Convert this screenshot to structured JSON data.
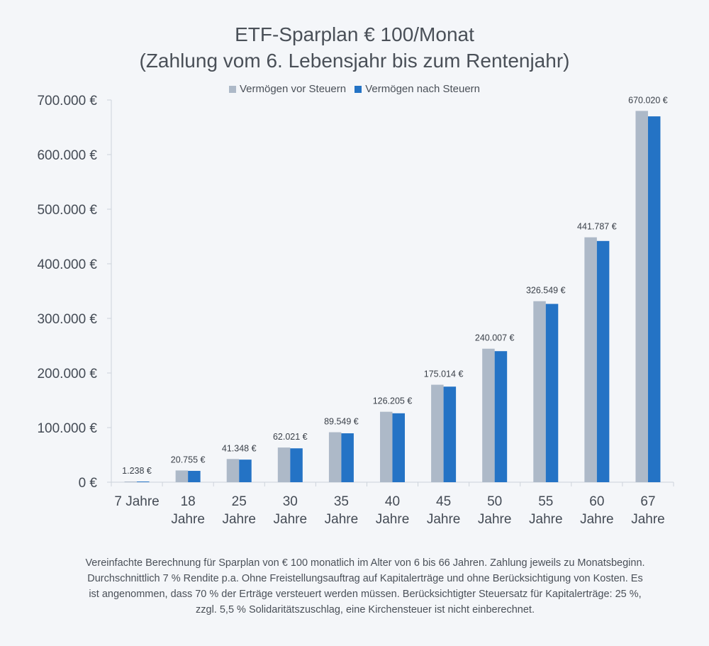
{
  "chart_data": {
    "type": "bar",
    "title": "ETF-Sparplan € 100/Monat",
    "subtitle": "(Zahlung vom 6. Lebensjahr bis zum Rentenjahr)",
    "categories": [
      [
        "7 Jahre"
      ],
      [
        "18",
        "Jahre"
      ],
      [
        "25",
        "Jahre"
      ],
      [
        "30",
        "Jahre"
      ],
      [
        "35",
        "Jahre"
      ],
      [
        "40",
        "Jahre"
      ],
      [
        "45",
        "Jahre"
      ],
      [
        "50",
        "Jahre"
      ],
      [
        "55",
        "Jahre"
      ],
      [
        "60",
        "Jahre"
      ],
      [
        "67",
        "Jahre"
      ]
    ],
    "series": [
      {
        "name": "Vermögen vor Steuern",
        "color": "#adb9c8",
        "values": [
          1250,
          21500,
          42500,
          63500,
          91500,
          129000,
          178500,
          244500,
          331500,
          448500,
          680000
        ]
      },
      {
        "name": "Vermögen nach Steuern",
        "color": "#2473c5",
        "values": [
          1238,
          20755,
          41348,
          62021,
          89549,
          126205,
          175014,
          240007,
          326549,
          441787,
          670020
        ]
      }
    ],
    "data_labels": [
      "1.238 €",
      "20.755 €",
      "41.348 €",
      "62.021 €",
      "89.549 €",
      "126.205 €",
      "175.014 €",
      "240.007 €",
      "326.549 €",
      "441.787 €",
      "670.020 €"
    ],
    "ylim": [
      0,
      700000
    ],
    "yticks": [
      0,
      100000,
      200000,
      300000,
      400000,
      500000,
      600000,
      700000
    ],
    "ytick_labels": [
      "0 €",
      "100.000 €",
      "200.000 €",
      "300.000 €",
      "400.000 €",
      "500.000 €",
      "600.000 €",
      "700.000 €"
    ],
    "grid": false,
    "legend_position": "top-center",
    "axis_color": "#cdd3db"
  },
  "footnote": "Vereinfachte Berechnung für Sparplan von € 100 monatlich im Alter von 6 bis 66 Jahren. Zahlung jeweils zu Monatsbeginn. Durchschnittlich 7 % Rendite p.a. Ohne Freistellungsauftrag auf Kapitalerträge und ohne Berücksichtigung von Kosten. Es ist angenommen, dass 70 % der Erträge versteuert werden müssen. Berücksichtigter Steuersatz für Kapitalerträge: 25 %, zzgl. 5,5 % Solidaritätszuschlag, eine Kirchensteuer ist nicht einberechnet."
}
